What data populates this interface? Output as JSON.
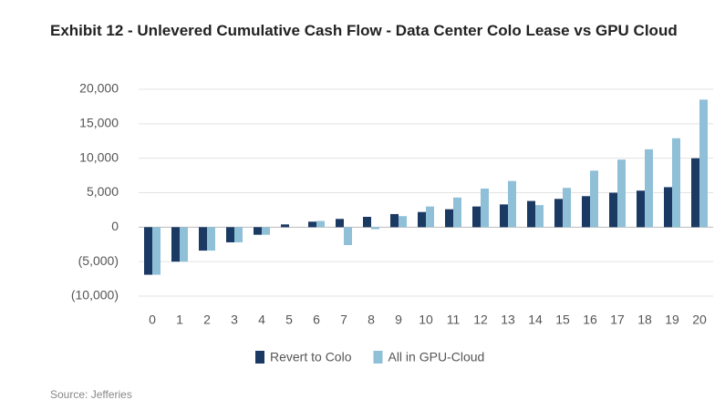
{
  "chart_data": {
    "type": "bar",
    "title": "Exhibit 12 - Unlevered Cumulative Cash Flow - Data Center Colo Lease vs GPU Cloud",
    "source": "Source: Jefferies",
    "categories": [
      "0",
      "1",
      "2",
      "3",
      "4",
      "5",
      "6",
      "7",
      "8",
      "9",
      "10",
      "11",
      "12",
      "13",
      "14",
      "15",
      "16",
      "17",
      "18",
      "19",
      "20"
    ],
    "series": [
      {
        "name": "Revert to Colo",
        "color": "#1b3a63",
        "values": [
          -6900,
          -5000,
          -3400,
          -2200,
          -1100,
          400,
          800,
          1200,
          1500,
          1900,
          2200,
          2600,
          3000,
          3300,
          3800,
          4100,
          4500,
          5000,
          5300,
          5800,
          10000
        ]
      },
      {
        "name": "All in GPU-Cloud",
        "color": "#8fc0d8",
        "values": [
          -6900,
          -5000,
          -3400,
          -2200,
          -1100,
          0,
          900,
          -2600,
          -300,
          1600,
          3000,
          4300,
          5600,
          6700,
          3200,
          5700,
          8200,
          9800,
          11300,
          12900,
          18500
        ]
      }
    ],
    "ylim": [
      -10000,
      20000
    ],
    "yticks": [
      {
        "value": -10000,
        "label": "(10,000)"
      },
      {
        "value": -5000,
        "label": "(5,000)"
      },
      0,
      {
        "value": 5000,
        "label": "5,000"
      },
      {
        "value": 10000,
        "label": "10,000"
      },
      {
        "value": 15000,
        "label": "15,000"
      },
      {
        "value": 20000,
        "label": "20,000"
      }
    ],
    "negative_tick_color": "#d0312d",
    "grid": true,
    "legend": "bottom"
  }
}
